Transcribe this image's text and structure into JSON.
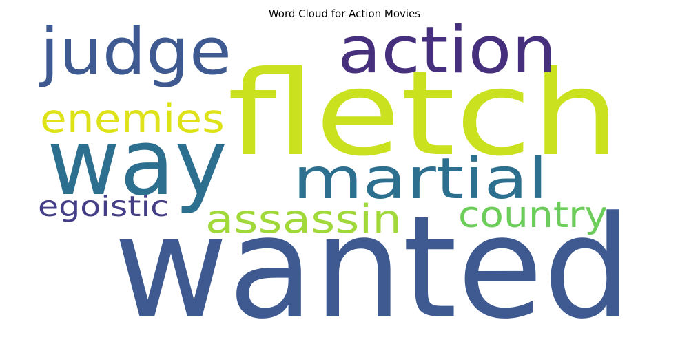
{
  "chart_data": {
    "type": "wordcloud",
    "title": "Word Cloud for Action Movies",
    "words": [
      {
        "text": "wanted",
        "weight": 1.0,
        "color": "#3e5a91"
      },
      {
        "text": "fletch",
        "weight": 0.83,
        "color": "#cae11f"
      },
      {
        "text": "way",
        "weight": 0.65,
        "color": "#2d6f8e"
      },
      {
        "text": "judge",
        "weight": 0.46,
        "color": "#3e5a91"
      },
      {
        "text": "action",
        "weight": 0.46,
        "color": "#462f7c"
      },
      {
        "text": "martial",
        "weight": 0.4,
        "color": "#2d6f8e"
      },
      {
        "text": "enemies",
        "weight": 0.28,
        "color": "#dde318"
      },
      {
        "text": "assassin",
        "weight": 0.28,
        "color": "#a2d93a"
      },
      {
        "text": "country",
        "weight": 0.26,
        "color": "#6ccd5a"
      },
      {
        "text": "egoistic",
        "weight": 0.2,
        "color": "#433e85"
      }
    ]
  }
}
